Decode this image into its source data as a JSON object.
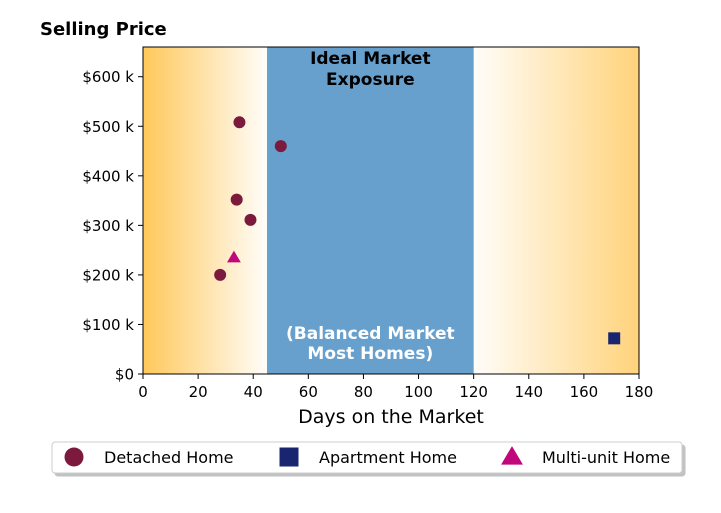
{
  "chart_data": {
    "type": "scatter",
    "title": "Selling Price",
    "xlabel": "Days on the Market",
    "ylabel": "Selling Price",
    "xlim": [
      0,
      180
    ],
    "ylim": [
      0,
      660000
    ],
    "x_ticks": [
      0,
      20,
      40,
      60,
      80,
      100,
      120,
      140,
      160,
      180
    ],
    "y_ticks": [
      0,
      100000,
      200000,
      300000,
      400000,
      500000,
      600000
    ],
    "y_tick_labels": [
      "$0",
      "$100 k",
      "$200 k",
      "$300 k",
      "$400 k",
      "$500 k",
      "$600 k"
    ],
    "grid": false,
    "legend_position": "bottom",
    "ideal_band": {
      "x_range": [
        45,
        120
      ],
      "title": [
        "Ideal Market",
        "Exposure"
      ],
      "note": [
        "(Balanced Market",
        "Most Homes)"
      ],
      "color": "#67a0cd"
    },
    "gradient_color": "#ffc85a",
    "series": [
      {
        "name": "Detached Home",
        "marker": "circle",
        "color": "#7b1a3c",
        "points": [
          [
            35,
            508000
          ],
          [
            50,
            460000
          ],
          [
            34,
            352000
          ],
          [
            39,
            311000
          ],
          [
            28,
            200000
          ]
        ]
      },
      {
        "name": "Apartment Home",
        "marker": "square",
        "color": "#1a2570",
        "points": [
          [
            171,
            72000
          ]
        ]
      },
      {
        "name": "Multi-unit Home",
        "marker": "triangle",
        "color": "#c0087a",
        "points": [
          [
            33,
            235000
          ]
        ]
      }
    ]
  }
}
